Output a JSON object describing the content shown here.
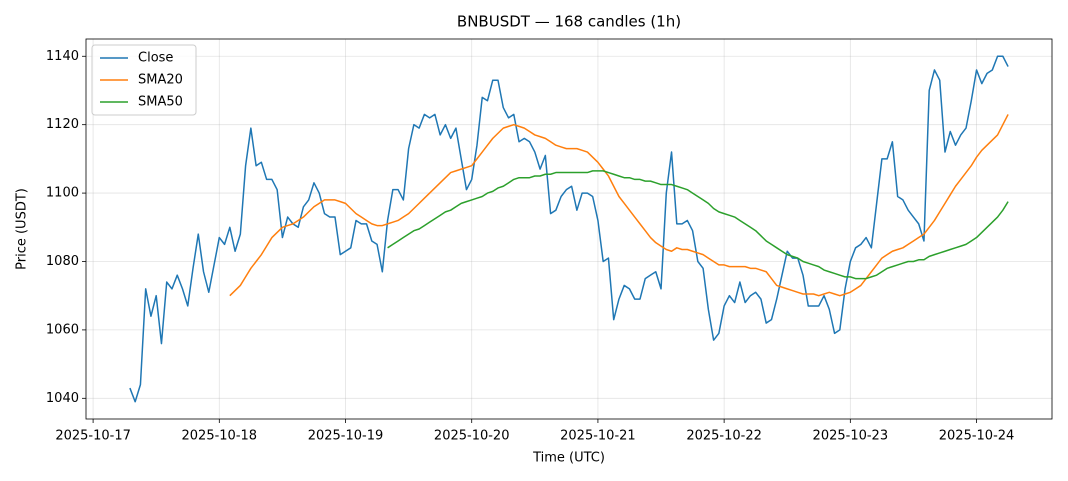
{
  "chart_data": {
    "type": "line",
    "title": "BNBUSDT — 168 candles (1h)",
    "xlabel": "Time (UTC)",
    "ylabel": "Price (USDT)",
    "x": [
      "2025-10-17 07:00",
      "2025-10-17 08:00",
      "2025-10-17 09:00",
      "2025-10-17 10:00",
      "2025-10-17 11:00",
      "2025-10-17 12:00",
      "2025-10-17 13:00",
      "2025-10-17 14:00",
      "2025-10-17 15:00",
      "2025-10-17 16:00",
      "2025-10-17 17:00",
      "2025-10-17 18:00",
      "2025-10-17 19:00",
      "2025-10-17 20:00",
      "2025-10-17 21:00",
      "2025-10-17 22:00",
      "2025-10-17 23:00",
      "2025-10-18 00:00",
      "2025-10-18 01:00",
      "2025-10-18 02:00",
      "2025-10-18 03:00",
      "2025-10-18 04:00",
      "2025-10-18 05:00",
      "2025-10-18 06:00",
      "2025-10-18 07:00",
      "2025-10-18 08:00",
      "2025-10-18 09:00",
      "2025-10-18 10:00",
      "2025-10-18 11:00",
      "2025-10-18 12:00",
      "2025-10-18 13:00",
      "2025-10-18 14:00",
      "2025-10-18 15:00",
      "2025-10-18 16:00",
      "2025-10-18 17:00",
      "2025-10-18 18:00",
      "2025-10-18 19:00",
      "2025-10-18 20:00",
      "2025-10-18 21:00",
      "2025-10-18 22:00",
      "2025-10-18 23:00",
      "2025-10-19 00:00",
      "2025-10-19 01:00",
      "2025-10-19 02:00",
      "2025-10-19 03:00",
      "2025-10-19 04:00",
      "2025-10-19 05:00",
      "2025-10-19 06:00",
      "2025-10-19 07:00",
      "2025-10-19 08:00",
      "2025-10-19 09:00",
      "2025-10-19 10:00",
      "2025-10-19 11:00",
      "2025-10-19 12:00",
      "2025-10-19 13:00",
      "2025-10-19 14:00",
      "2025-10-19 15:00",
      "2025-10-19 16:00",
      "2025-10-19 17:00",
      "2025-10-19 18:00",
      "2025-10-19 19:00",
      "2025-10-19 20:00",
      "2025-10-19 21:00",
      "2025-10-19 22:00",
      "2025-10-19 23:00",
      "2025-10-20 00:00",
      "2025-10-20 01:00",
      "2025-10-20 02:00",
      "2025-10-20 03:00",
      "2025-10-20 04:00",
      "2025-10-20 05:00",
      "2025-10-20 06:00",
      "2025-10-20 07:00",
      "2025-10-20 08:00",
      "2025-10-20 09:00",
      "2025-10-20 10:00",
      "2025-10-20 11:00",
      "2025-10-20 12:00",
      "2025-10-20 13:00",
      "2025-10-20 14:00",
      "2025-10-20 15:00",
      "2025-10-20 16:00",
      "2025-10-20 17:00",
      "2025-10-20 18:00",
      "2025-10-20 19:00",
      "2025-10-20 20:00",
      "2025-10-20 21:00",
      "2025-10-20 22:00",
      "2025-10-20 23:00",
      "2025-10-21 00:00",
      "2025-10-21 01:00",
      "2025-10-21 02:00",
      "2025-10-21 03:00",
      "2025-10-21 04:00",
      "2025-10-21 05:00",
      "2025-10-21 06:00",
      "2025-10-21 07:00",
      "2025-10-21 08:00",
      "2025-10-21 09:00",
      "2025-10-21 10:00",
      "2025-10-21 11:00",
      "2025-10-21 12:00",
      "2025-10-21 13:00",
      "2025-10-21 14:00",
      "2025-10-21 15:00",
      "2025-10-21 16:00",
      "2025-10-21 17:00",
      "2025-10-21 18:00",
      "2025-10-21 19:00",
      "2025-10-21 20:00",
      "2025-10-21 21:00",
      "2025-10-21 22:00",
      "2025-10-21 23:00",
      "2025-10-22 00:00",
      "2025-10-22 01:00",
      "2025-10-22 02:00",
      "2025-10-22 03:00",
      "2025-10-22 04:00",
      "2025-10-22 05:00",
      "2025-10-22 06:00",
      "2025-10-22 07:00",
      "2025-10-22 08:00",
      "2025-10-22 09:00",
      "2025-10-22 10:00",
      "2025-10-22 11:00",
      "2025-10-22 12:00",
      "2025-10-22 13:00",
      "2025-10-22 14:00",
      "2025-10-22 15:00",
      "2025-10-22 16:00",
      "2025-10-22 17:00",
      "2025-10-22 18:00",
      "2025-10-22 19:00",
      "2025-10-22 20:00",
      "2025-10-22 21:00",
      "2025-10-22 22:00",
      "2025-10-22 23:00",
      "2025-10-23 00:00",
      "2025-10-23 01:00",
      "2025-10-23 02:00",
      "2025-10-23 03:00",
      "2025-10-23 04:00",
      "2025-10-23 05:00",
      "2025-10-23 06:00",
      "2025-10-23 07:00",
      "2025-10-23 08:00",
      "2025-10-23 09:00",
      "2025-10-23 10:00",
      "2025-10-23 11:00",
      "2025-10-23 12:00",
      "2025-10-23 13:00",
      "2025-10-23 14:00",
      "2025-10-23 15:00",
      "2025-10-23 16:00",
      "2025-10-23 17:00",
      "2025-10-23 18:00",
      "2025-10-23 19:00",
      "2025-10-23 20:00",
      "2025-10-23 21:00",
      "2025-10-23 22:00",
      "2025-10-23 23:00",
      "2025-10-24 00:00",
      "2025-10-24 01:00",
      "2025-10-24 02:00",
      "2025-10-24 03:00",
      "2025-10-24 04:00",
      "2025-10-24 05:00",
      "2025-10-24 06:00"
    ],
    "series": [
      {
        "name": "Close",
        "color": "#1f77b4",
        "values": [
          1043,
          1039,
          1044,
          1072,
          1064,
          1070,
          1056,
          1074,
          1072,
          1076,
          1072,
          1067,
          1078,
          1088,
          1077,
          1071,
          1079,
          1087,
          1085,
          1090,
          1083,
          1088,
          1108,
          1119,
          1108,
          1109,
          1104,
          1104,
          1101,
          1087,
          1093,
          1091,
          1090,
          1096,
          1098,
          1103,
          1100,
          1094,
          1093,
          1093,
          1082,
          1083,
          1084,
          1092,
          1091,
          1091,
          1086,
          1085,
          1077,
          1092,
          1101,
          1101,
          1098,
          1113,
          1120,
          1119,
          1123,
          1122,
          1123,
          1117,
          1120,
          1116,
          1119,
          1110,
          1101,
          1104,
          1114,
          1128,
          1127,
          1133,
          1133,
          1125,
          1122,
          1123,
          1115,
          1116,
          1115,
          1112,
          1107,
          1111,
          1094,
          1095,
          1099,
          1101,
          1102,
          1095,
          1100,
          1100,
          1099,
          1092,
          1080,
          1081,
          1063,
          1069,
          1073,
          1072,
          1069,
          1069,
          1075,
          1076,
          1077,
          1072,
          1100,
          1112,
          1091,
          1091,
          1092,
          1089,
          1080,
          1078,
          1066,
          1057,
          1059,
          1067,
          1070,
          1068,
          1074,
          1068,
          1070,
          1071,
          1069,
          1062,
          1063,
          1069,
          1076,
          1083,
          1081,
          1081,
          1076,
          1067,
          1067,
          1067,
          1070,
          1066,
          1059,
          1060,
          1072,
          1080,
          1084,
          1085,
          1087,
          1084,
          1097,
          1110,
          1110,
          1115,
          1099,
          1098,
          1095,
          1093,
          1091,
          1086,
          1130,
          1136,
          1133,
          1112,
          1118,
          1114,
          1117,
          1119,
          1127,
          1136,
          1132,
          1135,
          1136,
          1140,
          1140,
          1137
        ]
      },
      {
        "name": "SMA20",
        "color": "#ff7f0e",
        "values": [
          null,
          null,
          null,
          null,
          null,
          null,
          null,
          null,
          null,
          null,
          null,
          null,
          null,
          null,
          null,
          null,
          null,
          null,
          null,
          1070,
          1071.5,
          1073,
          1075.5,
          1078,
          1080,
          1082,
          1084.5,
          1087,
          1088.5,
          1090,
          1090.5,
          1091,
          1092,
          1093,
          1094.5,
          1096,
          1097,
          1098,
          1098,
          1098,
          1097.5,
          1097,
          1095.5,
          1094,
          1093,
          1092,
          1091,
          1090.5,
          1090.5,
          1091,
          1091.5,
          1092,
          1093,
          1094,
          1095.5,
          1097,
          1098.5,
          1100,
          1101.5,
          1103,
          1104.5,
          1106,
          1106.5,
          1107,
          1107.5,
          1108,
          1110,
          1112,
          1114,
          1116,
          1117.5,
          1119,
          1119.5,
          1120,
          1119.5,
          1119,
          1118,
          1117,
          1116.5,
          1116,
          1115,
          1114,
          1113.5,
          1113,
          1113,
          1113,
          1112.5,
          1112,
          1110.5,
          1109,
          1107,
          1105,
          1102,
          1099,
          1097,
          1095,
          1093,
          1091,
          1089,
          1087,
          1085.5,
          1084.5,
          1083.5,
          1083,
          1084,
          1083.5,
          1083.5,
          1083,
          1082.5,
          1082,
          1081,
          1080,
          1079,
          1079,
          1078.5,
          1078.5,
          1078.5,
          1078.5,
          1078,
          1078,
          1077.5,
          1077,
          1075,
          1073,
          1072.5,
          1072,
          1071.5,
          1071,
          1070.5,
          1070.5,
          1070.5,
          1070,
          1070.5,
          1071,
          1070.5,
          1070,
          1070.5,
          1071,
          1072,
          1073,
          1075,
          1077,
          1079,
          1081,
          1082,
          1083,
          1083.5,
          1084,
          1085,
          1086,
          1087,
          1088,
          1090,
          1092,
          1094.5,
          1097,
          1099.5,
          1102,
          1104,
          1106,
          1108,
          1110.5,
          1112.5,
          1114,
          1115.5,
          1117,
          1120,
          1123
        ]
      },
      {
        "name": "SMA50",
        "color": "#2ca02c",
        "values": [
          null,
          null,
          null,
          null,
          null,
          null,
          null,
          null,
          null,
          null,
          null,
          null,
          null,
          null,
          null,
          null,
          null,
          null,
          null,
          null,
          null,
          null,
          null,
          null,
          null,
          null,
          null,
          null,
          null,
          null,
          null,
          null,
          null,
          null,
          null,
          null,
          null,
          null,
          null,
          null,
          null,
          null,
          null,
          null,
          null,
          null,
          null,
          null,
          null,
          1084,
          1085,
          1086,
          1087,
          1088,
          1089,
          1089.5,
          1090.5,
          1091.5,
          1092.5,
          1093.5,
          1094.5,
          1095,
          1096,
          1097,
          1097.5,
          1098,
          1098.5,
          1099,
          1100,
          1100.5,
          1101.5,
          1102,
          1103,
          1104,
          1104.5,
          1104.5,
          1104.5,
          1105,
          1105,
          1105.5,
          1105.5,
          1106,
          1106,
          1106,
          1106,
          1106,
          1106,
          1106,
          1106.5,
          1106.5,
          1106.5,
          1106,
          1105.5,
          1105,
          1104.5,
          1104.5,
          1104,
          1104,
          1103.5,
          1103.5,
          1103,
          1102.5,
          1102.5,
          1102.5,
          1102,
          1101.5,
          1101,
          1100,
          1099,
          1098,
          1097,
          1095.5,
          1094.5,
          1094,
          1093.5,
          1093,
          1092,
          1091,
          1090,
          1089,
          1087.5,
          1086,
          1085,
          1084,
          1083,
          1082,
          1081.5,
          1081,
          1080,
          1079.5,
          1079,
          1078.5,
          1077.5,
          1077,
          1076.5,
          1076,
          1075.5,
          1075.5,
          1075,
          1075,
          1075,
          1075.5,
          1076,
          1077,
          1078,
          1078.5,
          1079,
          1079.5,
          1080,
          1080,
          1080.5,
          1080.5,
          1081.5,
          1082,
          1082.5,
          1083,
          1083.5,
          1084,
          1084.5,
          1085,
          1086,
          1087,
          1088.5,
          1090,
          1091.5,
          1093,
          1095,
          1097.5
        ]
      }
    ],
    "xlim": [
      "2025-10-16 22:39",
      "2025-10-24 14:21"
    ],
    "xticks": [
      "2025-10-17",
      "2025-10-18",
      "2025-10-19",
      "2025-10-20",
      "2025-10-21",
      "2025-10-22",
      "2025-10-23",
      "2025-10-24"
    ],
    "ylim": [
      1033.95,
      1145.05
    ],
    "yticks": [
      1040,
      1060,
      1080,
      1100,
      1120,
      1140
    ],
    "grid": true,
    "legend": "upper left"
  }
}
